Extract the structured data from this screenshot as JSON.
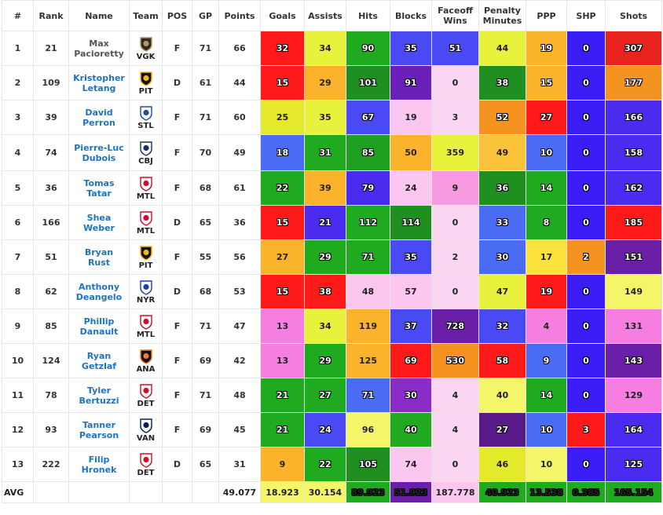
{
  "headers": [
    "#",
    "Rank",
    "Name",
    "Team",
    "POS",
    "GP",
    "Points",
    "Goals",
    "Assists",
    "Hits",
    "Blocks",
    "Faceoff Wins",
    "Penalty Minutes",
    "PPP",
    "SHP",
    "Shots"
  ],
  "stat_keys": [
    "goals",
    "assists",
    "hits",
    "blocks",
    "faceoff_wins",
    "penalty_minutes",
    "ppp",
    "shp",
    "shots"
  ],
  "players": [
    {
      "num": "1",
      "rank": "21",
      "first": "Max",
      "last": "Pacioretty",
      "team": "VGK",
      "logo": "vgk-logo-icon",
      "pos": "F",
      "gp": "71",
      "points": "66",
      "stats": {
        "goals": {
          "v": "32",
          "c": "#ff1a1a",
          "o": true
        },
        "assists": {
          "v": "34",
          "c": "#e8f23c",
          "o": false
        },
        "hits": {
          "v": "90",
          "c": "#1faa1f",
          "o": true
        },
        "blocks": {
          "v": "35",
          "c": "#4a4af5",
          "o": true
        },
        "faceoff_wins": {
          "v": "51",
          "c": "#4a4af5",
          "o": true
        },
        "penalty_minutes": {
          "v": "44",
          "c": "#e8f23c",
          "o": false
        },
        "ppp": {
          "v": "19",
          "c": "#fbb32c",
          "o": true
        },
        "shp": {
          "v": "0",
          "c": "#3b1ef5",
          "o": true
        },
        "shots": {
          "v": "307",
          "c": "#e8221c",
          "o": true
        }
      }
    },
    {
      "num": "2",
      "rank": "109",
      "first": "Kristopher",
      "last": "Letang",
      "team": "PIT",
      "logo": "pit-logo-icon",
      "pos": "D",
      "gp": "61",
      "points": "44",
      "stats": {
        "goals": {
          "v": "15",
          "c": "#ff1a1a",
          "o": true
        },
        "assists": {
          "v": "29",
          "c": "#fbb32c",
          "o": false
        },
        "hits": {
          "v": "101",
          "c": "#1f8f1f",
          "o": true
        },
        "blocks": {
          "v": "91",
          "c": "#6a1fb8",
          "o": true
        },
        "faceoff_wins": {
          "v": "0",
          "c": "#fbd6f2",
          "o": false
        },
        "penalty_minutes": {
          "v": "38",
          "c": "#1f8f1f",
          "o": true
        },
        "ppp": {
          "v": "15",
          "c": "#fbb32c",
          "o": true
        },
        "shp": {
          "v": "0",
          "c": "#3b1ef5",
          "o": true
        },
        "shots": {
          "v": "177",
          "c": "#f4931f",
          "o": true
        }
      }
    },
    {
      "num": "3",
      "rank": "39",
      "first": "David",
      "last": "Perron",
      "team": "STL",
      "logo": "stl-logo-icon",
      "pos": "F",
      "gp": "71",
      "points": "60",
      "stats": {
        "goals": {
          "v": "25",
          "c": "#e4ea2a",
          "o": false
        },
        "assists": {
          "v": "35",
          "c": "#e8f23c",
          "o": false
        },
        "hits": {
          "v": "67",
          "c": "#4a4af5",
          "o": true
        },
        "blocks": {
          "v": "19",
          "c": "#fbc6ef",
          "o": false
        },
        "faceoff_wins": {
          "v": "3",
          "c": "#fbd6f2",
          "o": false
        },
        "penalty_minutes": {
          "v": "52",
          "c": "#f4931f",
          "o": true
        },
        "ppp": {
          "v": "27",
          "c": "#ff1a1a",
          "o": true
        },
        "shp": {
          "v": "0",
          "c": "#3b1ef5",
          "o": true
        },
        "shots": {
          "v": "166",
          "c": "#4a2cf0",
          "o": true
        }
      }
    },
    {
      "num": "4",
      "rank": "74",
      "first": "Pierre-Luc",
      "last": "Dubois",
      "team": "CBJ",
      "logo": "cbj-logo-icon",
      "pos": "F",
      "gp": "70",
      "points": "49",
      "stats": {
        "goals": {
          "v": "18",
          "c": "#4a6cf5",
          "o": true
        },
        "assists": {
          "v": "31",
          "c": "#1faa1f",
          "o": true
        },
        "hits": {
          "v": "85",
          "c": "#1f9f1f",
          "o": true
        },
        "blocks": {
          "v": "50",
          "c": "#fbb32c",
          "o": false
        },
        "faceoff_wins": {
          "v": "359",
          "c": "#e8f23c",
          "o": false
        },
        "penalty_minutes": {
          "v": "49",
          "c": "#fbc33c",
          "o": false
        },
        "ppp": {
          "v": "10",
          "c": "#4a6cf5",
          "o": true
        },
        "shp": {
          "v": "0",
          "c": "#3b1ef5",
          "o": true
        },
        "shots": {
          "v": "158",
          "c": "#4a2cf0",
          "o": true
        }
      }
    },
    {
      "num": "5",
      "rank": "36",
      "first": "Tomas",
      "last": "Tatar",
      "team": "MTL",
      "logo": "mtl-logo-icon",
      "pos": "F",
      "gp": "68",
      "points": "61",
      "stats": {
        "goals": {
          "v": "22",
          "c": "#1faa1f",
          "o": true
        },
        "assists": {
          "v": "39",
          "c": "#fbb32c",
          "o": false
        },
        "hits": {
          "v": "79",
          "c": "#4a2cf0",
          "o": true
        },
        "blocks": {
          "v": "24",
          "c": "#fbc6ef",
          "o": false
        },
        "faceoff_wins": {
          "v": "9",
          "c": "#f59ae0",
          "o": false
        },
        "penalty_minutes": {
          "v": "36",
          "c": "#1f8f1f",
          "o": true
        },
        "ppp": {
          "v": "14",
          "c": "#1faa1f",
          "o": true
        },
        "shp": {
          "v": "0",
          "c": "#3b1ef5",
          "o": true
        },
        "shots": {
          "v": "162",
          "c": "#4a2cf0",
          "o": true
        }
      }
    },
    {
      "num": "6",
      "rank": "166",
      "first": "Shea",
      "last": "Weber",
      "team": "MTL",
      "logo": "mtl-logo-icon",
      "pos": "D",
      "gp": "65",
      "points": "36",
      "stats": {
        "goals": {
          "v": "15",
          "c": "#ff1a1a",
          "o": true
        },
        "assists": {
          "v": "21",
          "c": "#4a2cf0",
          "o": true
        },
        "hits": {
          "v": "112",
          "c": "#1faa1f",
          "o": true
        },
        "blocks": {
          "v": "114",
          "c": "#1f8f1f",
          "o": true
        },
        "faceoff_wins": {
          "v": "0",
          "c": "#fbd6f2",
          "o": false
        },
        "penalty_minutes": {
          "v": "33",
          "c": "#4a6cf5",
          "o": true
        },
        "ppp": {
          "v": "8",
          "c": "#1faa1f",
          "o": true
        },
        "shp": {
          "v": "0",
          "c": "#3b1ef5",
          "o": true
        },
        "shots": {
          "v": "185",
          "c": "#ff1a1a",
          "o": true
        }
      }
    },
    {
      "num": "7",
      "rank": "51",
      "first": "Bryan",
      "last": "Rust",
      "team": "PIT",
      "logo": "pit-logo-icon",
      "pos": "F",
      "gp": "55",
      "points": "56",
      "stats": {
        "goals": {
          "v": "27",
          "c": "#fbb32c",
          "o": false
        },
        "assists": {
          "v": "29",
          "c": "#1faa1f",
          "o": true
        },
        "hits": {
          "v": "71",
          "c": "#1faa1f",
          "o": true
        },
        "blocks": {
          "v": "35",
          "c": "#4a4af5",
          "o": true
        },
        "faceoff_wins": {
          "v": "2",
          "c": "#fbd6f2",
          "o": false
        },
        "penalty_minutes": {
          "v": "30",
          "c": "#4a6cf5",
          "o": true
        },
        "ppp": {
          "v": "17",
          "c": "#fbe33c",
          "o": false
        },
        "shp": {
          "v": "2",
          "c": "#f4931f",
          "o": true
        },
        "shots": {
          "v": "151",
          "c": "#6a1fa8",
          "o": true
        }
      }
    },
    {
      "num": "8",
      "rank": "62",
      "first": "Anthony",
      "last": "Deangelo",
      "team": "NYR",
      "logo": "nyr-logo-icon",
      "pos": "D",
      "gp": "68",
      "points": "53",
      "stats": {
        "goals": {
          "v": "15",
          "c": "#ff1a1a",
          "o": true
        },
        "assists": {
          "v": "38",
          "c": "#ff1a1a",
          "o": true
        },
        "hits": {
          "v": "48",
          "c": "#fbc6ef",
          "o": false
        },
        "blocks": {
          "v": "57",
          "c": "#fbc6ef",
          "o": false
        },
        "faceoff_wins": {
          "v": "0",
          "c": "#fbd6f2",
          "o": false
        },
        "penalty_minutes": {
          "v": "47",
          "c": "#e8f23c",
          "o": false
        },
        "ppp": {
          "v": "19",
          "c": "#ff1a1a",
          "o": true
        },
        "shp": {
          "v": "0",
          "c": "#3b1ef5",
          "o": true
        },
        "shots": {
          "v": "149",
          "c": "#f5f56a",
          "o": false
        }
      }
    },
    {
      "num": "9",
      "rank": "85",
      "first": "Phillip",
      "last": "Danault",
      "team": "MTL",
      "logo": "mtl-logo-icon",
      "pos": "F",
      "gp": "71",
      "points": "47",
      "stats": {
        "goals": {
          "v": "13",
          "c": "#f57ee0",
          "o": false
        },
        "assists": {
          "v": "34",
          "c": "#e8f23c",
          "o": false
        },
        "hits": {
          "v": "119",
          "c": "#fbb32c",
          "o": false
        },
        "blocks": {
          "v": "37",
          "c": "#4a4af5",
          "o": true
        },
        "faceoff_wins": {
          "v": "728",
          "c": "#6a1fa8",
          "o": true
        },
        "penalty_minutes": {
          "v": "32",
          "c": "#4a4af5",
          "o": true
        },
        "ppp": {
          "v": "4",
          "c": "#f57ee0",
          "o": false
        },
        "shp": {
          "v": "0",
          "c": "#3b1ef5",
          "o": true
        },
        "shots": {
          "v": "131",
          "c": "#f57ee0",
          "o": false
        }
      }
    },
    {
      "num": "10",
      "rank": "124",
      "first": "Ryan",
      "last": "Getzlaf",
      "team": "ANA",
      "logo": "ana-logo-icon",
      "pos": "F",
      "gp": "69",
      "points": "42",
      "stats": {
        "goals": {
          "v": "13",
          "c": "#f57ee0",
          "o": false
        },
        "assists": {
          "v": "29",
          "c": "#1faa1f",
          "o": true
        },
        "hits": {
          "v": "125",
          "c": "#fbb32c",
          "o": false
        },
        "blocks": {
          "v": "69",
          "c": "#ff1a1a",
          "o": true
        },
        "faceoff_wins": {
          "v": "530",
          "c": "#f4931f",
          "o": true
        },
        "penalty_minutes": {
          "v": "58",
          "c": "#ff1a1a",
          "o": true
        },
        "ppp": {
          "v": "9",
          "c": "#4a6cf5",
          "o": true
        },
        "shp": {
          "v": "0",
          "c": "#3b1ef5",
          "o": true
        },
        "shots": {
          "v": "143",
          "c": "#6a1fa8",
          "o": true
        }
      }
    },
    {
      "num": "11",
      "rank": "78",
      "first": "Tyler",
      "last": "Bertuzzi",
      "team": "DET",
      "logo": "det-logo-icon",
      "pos": "F",
      "gp": "71",
      "points": "48",
      "stats": {
        "goals": {
          "v": "21",
          "c": "#1faa1f",
          "o": true
        },
        "assists": {
          "v": "27",
          "c": "#1faa1f",
          "o": true
        },
        "hits": {
          "v": "71",
          "c": "#4a6cf5",
          "o": true
        },
        "blocks": {
          "v": "30",
          "c": "#8a2cc8",
          "o": true
        },
        "faceoff_wins": {
          "v": "4",
          "c": "#fbd6f2",
          "o": false
        },
        "penalty_minutes": {
          "v": "40",
          "c": "#f5f56a",
          "o": false
        },
        "ppp": {
          "v": "14",
          "c": "#1faa1f",
          "o": true
        },
        "shp": {
          "v": "0",
          "c": "#3b1ef5",
          "o": true
        },
        "shots": {
          "v": "129",
          "c": "#f57ee0",
          "o": false
        }
      }
    },
    {
      "num": "12",
      "rank": "93",
      "first": "Tanner",
      "last": "Pearson",
      "team": "VAN",
      "logo": "van-logo-icon",
      "pos": "F",
      "gp": "69",
      "points": "45",
      "stats": {
        "goals": {
          "v": "21",
          "c": "#1faa1f",
          "o": true
        },
        "assists": {
          "v": "24",
          "c": "#4a4af5",
          "o": true
        },
        "hits": {
          "v": "96",
          "c": "#f5f56a",
          "o": false
        },
        "blocks": {
          "v": "40",
          "c": "#1faa1f",
          "o": true
        },
        "faceoff_wins": {
          "v": "4",
          "c": "#fbd6f2",
          "o": false
        },
        "penalty_minutes": {
          "v": "27",
          "c": "#5a1a8a",
          "o": true
        },
        "ppp": {
          "v": "10",
          "c": "#4a6cf5",
          "o": true
        },
        "shp": {
          "v": "3",
          "c": "#ff1a1a",
          "o": true
        },
        "shots": {
          "v": "164",
          "c": "#4a2cf0",
          "o": true
        }
      }
    },
    {
      "num": "13",
      "rank": "222",
      "first": "Filip",
      "last": "Hronek",
      "team": "DET",
      "logo": "det-logo-icon",
      "pos": "D",
      "gp": "65",
      "points": "31",
      "stats": {
        "goals": {
          "v": "9",
          "c": "#fbb32c",
          "o": false
        },
        "assists": {
          "v": "22",
          "c": "#1faa1f",
          "o": true
        },
        "hits": {
          "v": "105",
          "c": "#1f8f1f",
          "o": true
        },
        "blocks": {
          "v": "74",
          "c": "#fbc6ef",
          "o": false
        },
        "faceoff_wins": {
          "v": "0",
          "c": "#fbd6f2",
          "o": false
        },
        "penalty_minutes": {
          "v": "46",
          "c": "#e4ea2a",
          "o": false
        },
        "ppp": {
          "v": "10",
          "c": "#f5f56a",
          "o": false
        },
        "shp": {
          "v": "0",
          "c": "#3b1ef5",
          "o": true
        },
        "shots": {
          "v": "125",
          "c": "#4a2cf0",
          "o": true
        }
      }
    }
  ],
  "avg": {
    "label": "AVG",
    "points": "49.077",
    "stats": {
      "goals": {
        "v": "18.923",
        "c": "#f5f56a",
        "o": false
      },
      "assists": {
        "v": "30.154",
        "c": "#f5f56a",
        "o": false
      },
      "hits": {
        "v": "89.923",
        "c": "#1faa1f",
        "o": true
      },
      "blocks": {
        "v": "51.923",
        "c": "#6a1fa8",
        "o": true
      },
      "faceoff_wins": {
        "v": "187.778",
        "c": "#fbc6ef",
        "o": false
      },
      "penalty_minutes": {
        "v": "40.923",
        "c": "#1faa1f",
        "o": true
      },
      "ppp": {
        "v": "13.538",
        "c": "#1faa1f",
        "o": true
      },
      "shp": {
        "v": "0.385",
        "c": "#1faa1f",
        "o": true
      },
      "shots": {
        "v": "165.154",
        "c": "#1faa1f",
        "o": true
      }
    }
  },
  "team_colors": {
    "VGK": {
      "bg": "#2b2b2b",
      "fg": "#b4975a"
    },
    "PIT": {
      "bg": "#111111",
      "fg": "#fcb514"
    },
    "STL": {
      "bg": "#ffffff",
      "fg": "#1d4f9c"
    },
    "CBJ": {
      "bg": "#ffffff",
      "fg": "#1b2f66"
    },
    "MTL": {
      "bg": "#ffffff",
      "fg": "#c8102e"
    },
    "NYR": {
      "bg": "#ffffff",
      "fg": "#1f3fa0"
    },
    "ANA": {
      "bg": "#111111",
      "fg": "#f47a38"
    },
    "DET": {
      "bg": "#ffffff",
      "fg": "#ce1126"
    },
    "VAN": {
      "bg": "#ffffff",
      "fg": "#00205b"
    }
  }
}
